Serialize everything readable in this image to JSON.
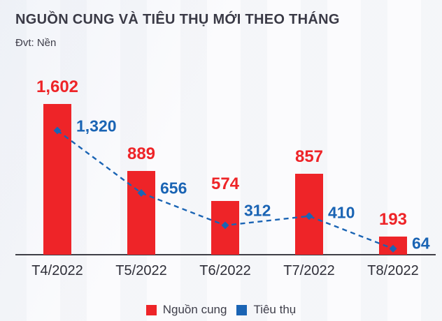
{
  "header": {
    "title": "NGUỒN CUNG VÀ TIÊU THỤ MỚI THEO THÁNG",
    "unit_label": "Đvt: Nền"
  },
  "chart_data": {
    "type": "bar",
    "subtype": "bar-line-combo",
    "categories": [
      "T4/2022",
      "T5/2022",
      "T6/2022",
      "T7/2022",
      "T8/2022"
    ],
    "series": [
      {
        "name": "Nguồn cung",
        "type": "bar",
        "color": "#ee2428",
        "values": [
          1602,
          889,
          574,
          857,
          193
        ]
      },
      {
        "name": "Tiêu thụ",
        "type": "line",
        "line_style": "dashed",
        "marker": "diamond",
        "color": "#1a64b4",
        "values": [
          1320,
          656,
          312,
          410,
          64
        ]
      }
    ],
    "data_labels": {
      "bar": [
        "1,602",
        "889",
        "574",
        "857",
        "193"
      ],
      "line": [
        "1,320",
        "656",
        "312",
        "410",
        "64"
      ]
    },
    "title": "NGUỒN CUNG VÀ TIÊU THỤ MỚI THEO THÁNG",
    "xlabel": "",
    "ylabel": "Nền",
    "ylim": [
      0,
      1700
    ],
    "grid": false,
    "y_axis_visible": false,
    "legend_position": "bottom"
  }
}
